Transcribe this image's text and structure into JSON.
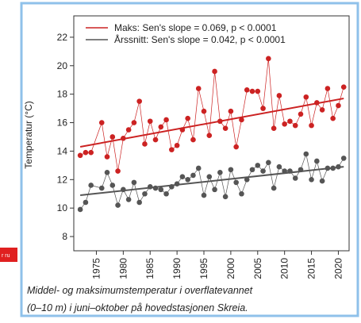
{
  "side_label": "r ru",
  "caption": [
    "Middel- og maksimumstemperatur i overflatevannet",
    "(0–10 m) i juni–oktober på hovedstasjonen Skreia."
  ],
  "chart_data": {
    "type": "scatter",
    "y_label": "Temperatur (°C)",
    "xlim": [
      1970.8,
      2022
    ],
    "ylim": [
      7,
      23.5
    ],
    "xticks": [
      1975,
      1980,
      1985,
      1990,
      1995,
      2000,
      2005,
      2010,
      2015,
      2020
    ],
    "yticks": [
      8,
      10,
      12,
      14,
      16,
      18,
      20,
      22
    ],
    "x": [
      1972,
      1973,
      1974,
      1976,
      1977,
      1978,
      1979,
      1980,
      1981,
      1982,
      1983,
      1984,
      1985,
      1986,
      1987,
      1988,
      1989,
      1990,
      1991,
      1992,
      1993,
      1994,
      1995,
      1996,
      1997,
      1998,
      1999,
      2000,
      2001,
      2002,
      2003,
      2004,
      2005,
      2006,
      2007,
      2008,
      2009,
      2010,
      2011,
      2012,
      2013,
      2014,
      2015,
      2016,
      2017,
      2018,
      2019,
      2020,
      2021
    ],
    "trend_x": [
      1972,
      2021
    ],
    "series": [
      {
        "name": "Maks: Sen's slope = 0.069, p < 0.0001",
        "color": "#cc2222",
        "values": [
          13.7,
          13.9,
          13.9,
          16.0,
          13.6,
          15.0,
          12.6,
          14.9,
          15.5,
          16.0,
          17.5,
          14.5,
          16.1,
          14.8,
          15.7,
          16.2,
          14.1,
          14.4,
          15.5,
          16.3,
          14.8,
          18.4,
          16.8,
          15.1,
          19.6,
          16.1,
          15.6,
          16.8,
          14.3,
          16.2,
          18.3,
          18.2,
          18.2,
          17.0,
          20.5,
          15.6,
          17.9,
          15.9,
          16.1,
          15.8,
          16.6,
          17.8,
          15.8,
          17.4,
          16.9,
          18.4,
          16.3,
          17.2,
          18.5
        ],
        "trend": [
          14.3,
          17.7
        ]
      },
      {
        "name": "Årssnitt: Sen's slope = 0.042, p < 0.0001",
        "color": "#555555",
        "values": [
          9.9,
          10.4,
          11.6,
          11.4,
          12.5,
          11.6,
          10.2,
          11.3,
          10.6,
          11.8,
          10.4,
          11.0,
          11.5,
          11.4,
          11.3,
          11.0,
          11.5,
          11.7,
          12.2,
          12.0,
          12.3,
          12.8,
          10.9,
          12.2,
          11.3,
          12.5,
          10.8,
          12.7,
          11.8,
          11.0,
          12.0,
          12.7,
          13.0,
          12.6,
          13.2,
          11.4,
          12.9,
          12.6,
          12.6,
          12.1,
          12.7,
          13.8,
          12.0,
          13.3,
          11.9,
          12.8,
          12.8,
          12.9,
          13.5
        ],
        "trend": [
          10.9,
          12.9
        ]
      }
    ]
  }
}
